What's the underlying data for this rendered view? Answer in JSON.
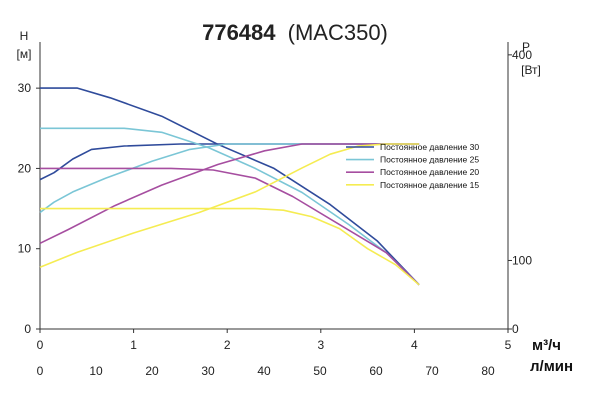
{
  "chart_data": {
    "type": "line",
    "title_bold": "776484",
    "title_rest": "(MAC350)",
    "left_axis": {
      "symbol": "H",
      "unit": "[м]",
      "range": [
        0,
        35
      ],
      "ticks": [
        "0",
        "10",
        "20",
        "30"
      ]
    },
    "right_axis": {
      "symbol": "P",
      "unit": "[Вт]",
      "range": [
        0,
        410
      ],
      "ticks": [
        "0",
        "100",
        "400"
      ]
    },
    "x_axis_flow": {
      "unit": "м³/ч",
      "range": [
        0,
        5
      ],
      "ticks": [
        "0",
        "1",
        "2",
        "3",
        "4",
        "5"
      ]
    },
    "x_axis_lpm": {
      "unit": "л/мин",
      "range": [
        0,
        83.3
      ],
      "ticks": [
        "0",
        "10",
        "20",
        "30",
        "40",
        "50",
        "60",
        "70",
        "80"
      ]
    },
    "series": [
      {
        "name": "Постоянное давление 30",
        "color": "#2f4b9b",
        "head": [
          [
            0,
            30
          ],
          [
            0.4,
            30
          ],
          [
            0.75,
            28.8
          ],
          [
            1.3,
            26.5
          ],
          [
            1.9,
            23
          ],
          [
            2.5,
            20
          ],
          [
            3.1,
            15.5
          ],
          [
            3.6,
            11
          ],
          [
            4.05,
            5.5
          ]
        ],
        "power": [
          [
            0,
            218
          ],
          [
            0.15,
            228
          ],
          [
            0.35,
            248
          ],
          [
            0.55,
            262
          ],
          [
            0.9,
            267
          ],
          [
            1.5,
            270
          ],
          [
            2.2,
            270
          ],
          [
            4.05,
            270
          ]
        ]
      },
      {
        "name": "Постоянное давление 25",
        "color": "#7bc6d6",
        "head": [
          [
            0,
            25
          ],
          [
            0.9,
            25
          ],
          [
            1.3,
            24.5
          ],
          [
            1.8,
            22.6
          ],
          [
            2.3,
            20
          ],
          [
            2.8,
            17
          ],
          [
            3.3,
            13
          ],
          [
            3.7,
            9.5
          ],
          [
            4.05,
            5.5
          ]
        ],
        "power": [
          [
            0,
            170
          ],
          [
            0.15,
            185
          ],
          [
            0.35,
            200
          ],
          [
            0.7,
            220
          ],
          [
            1.2,
            245
          ],
          [
            1.6,
            262
          ],
          [
            2.0,
            270
          ],
          [
            4.05,
            270
          ]
        ]
      },
      {
        "name": "Постоянное давление 20",
        "color": "#a64ea0",
        "head": [
          [
            0,
            20
          ],
          [
            1.4,
            20
          ],
          [
            1.85,
            19.8
          ],
          [
            2.3,
            18.8
          ],
          [
            2.7,
            16.5
          ],
          [
            3.2,
            13
          ],
          [
            3.7,
            9.5
          ],
          [
            4.05,
            5.5
          ]
        ],
        "power": [
          [
            0,
            125
          ],
          [
            0.3,
            145
          ],
          [
            0.8,
            180
          ],
          [
            1.3,
            210
          ],
          [
            1.9,
            240
          ],
          [
            2.4,
            260
          ],
          [
            2.8,
            270
          ],
          [
            4.05,
            270
          ]
        ]
      },
      {
        "name": "Постоянное давление 15",
        "color": "#f5ec52",
        "head": [
          [
            0,
            15
          ],
          [
            2.3,
            15
          ],
          [
            2.6,
            14.8
          ],
          [
            2.9,
            14
          ],
          [
            3.2,
            12.5
          ],
          [
            3.5,
            10
          ],
          [
            3.8,
            8
          ],
          [
            4.05,
            5.5
          ]
        ],
        "power": [
          [
            0,
            90
          ],
          [
            0.4,
            112
          ],
          [
            1.0,
            140
          ],
          [
            1.7,
            170
          ],
          [
            2.3,
            200
          ],
          [
            2.8,
            235
          ],
          [
            3.1,
            255
          ],
          [
            3.4,
            267
          ],
          [
            3.7,
            270
          ],
          [
            4.05,
            270
          ]
        ]
      }
    ]
  }
}
